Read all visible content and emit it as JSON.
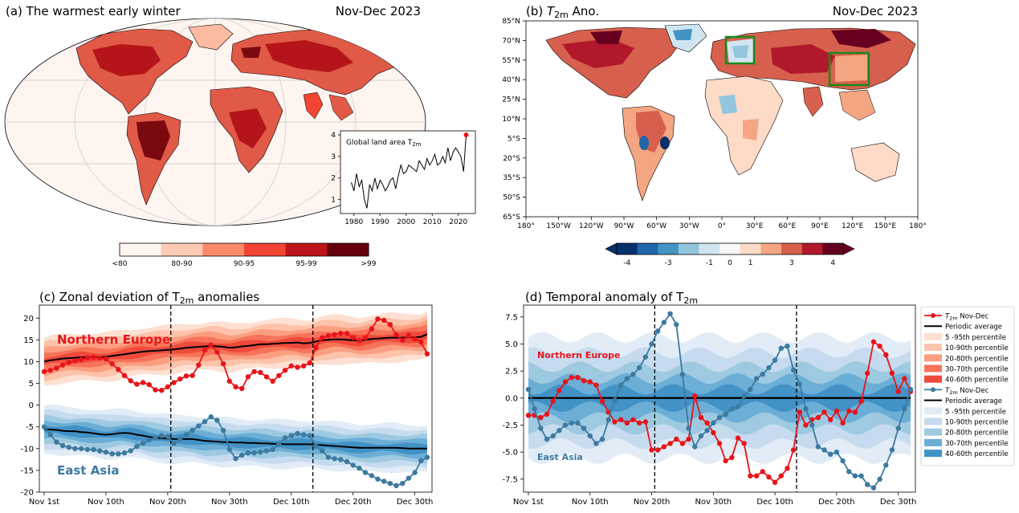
{
  "colors": {
    "red": "#e8141b",
    "blue": "#3d7aa0",
    "ref": "#000000",
    "green": "#1a8a1a",
    "ocean": "#fff5f0",
    "land_mid": "#e05a47"
  },
  "panel_a": {
    "title": "(a) The warmest early winter",
    "period": "Nov-Dec 2023",
    "colorbar_labels": [
      "<80",
      "80-90",
      "90-95",
      "95-99",
      ">99"
    ],
    "colorbar_colors": [
      "#fff5f0",
      "#fdcab5",
      "#fc8a6a",
      "#f14432",
      "#bc141a",
      "#67000d"
    ]
  },
  "panel_b": {
    "title": "(b) T2m Ano.",
    "title_prefix": "(b) ",
    "title_var": "T",
    "title_sub": "2m",
    "title_suffix": " Ano.",
    "period": "Nov-Dec 2023",
    "lat_labels": [
      "85°N",
      "70°N",
      "55°N",
      "40°N",
      "25°N",
      "10°N",
      "5°S",
      "20°S",
      "35°S",
      "50°S",
      "65°S"
    ],
    "lon_labels": [
      "180°",
      "150°W",
      "120°W",
      "90°W",
      "60°W",
      "30°W",
      "0°",
      "30°E",
      "60°E",
      "90°E",
      "120°E",
      "150°E",
      "180°"
    ],
    "colorbar_ticks": [
      "-4",
      "-3",
      "-1",
      "0",
      "1",
      "3",
      "4"
    ],
    "colorbar_colors": [
      "#08306b",
      "#2166ac",
      "#4393c3",
      "#92c5de",
      "#d1e5f0",
      "#f7f7f7",
      "#fddbc7",
      "#f4a582",
      "#d6604d",
      "#b2182b",
      "#67001f"
    ]
  },
  "inset": {
    "title_text": "Global land area T",
    "title_sub": "2m",
    "xlabels": [
      "1980",
      "1990",
      "2000",
      "2010",
      "2020"
    ],
    "ylabels": [
      "1",
      "2",
      "3",
      "4"
    ]
  },
  "panel_c": {
    "title_text": "(c) Zonal deviation of T",
    "title_sub": "2m",
    "title_suffix": " anomalies",
    "label_ne": "Northern Europe",
    "label_ea": "East Asia",
    "y_ticks": [
      "20",
      "15",
      "10",
      "5",
      "0",
      "-5",
      "-10",
      "-15",
      "-20"
    ],
    "x_labels": [
      "Nov 1st",
      "Nov 10th",
      "Nov 20th",
      "Nov 30th",
      "Dec 10th",
      "Dec 20th",
      "Dec 30th"
    ]
  },
  "panel_d": {
    "title_text": "(d) Temporal anomaly of T",
    "title_sub": "2m",
    "label_ne": "Northern Europe",
    "label_ea": "East Asia",
    "y_ticks": [
      "7.5",
      "5.0",
      "2.5",
      "0.0",
      "-2.5",
      "-5.0",
      "-7.5"
    ],
    "x_labels": [
      "Nov 1st",
      "Nov 10th",
      "Nov 20th",
      "Nov 30th",
      "Dec 10th",
      "Dec 20th",
      "Dec 30th"
    ]
  },
  "legend": {
    "line_label_prefix": "T",
    "line_label_sub": "2m",
    "line_label_suffix": " Nov-Dec",
    "items": [
      "Periodic average",
      "5  -95th percentile",
      "10-90th percentile",
      "20-80th percentile",
      "30-70th percentile",
      "40-60th percentile"
    ],
    "red_band_colors": [
      "#fde0d2",
      "#fcc3aa",
      "#fb9f80",
      "#f7735a",
      "#ef4a3b"
    ],
    "blue_band_colors": [
      "#e1ecf7",
      "#c6dbef",
      "#9ecae1",
      "#6baed6",
      "#4292c6"
    ]
  },
  "chart_data": [
    {
      "type": "line",
      "title": "Global land area T2m",
      "x": [
        1979,
        1980,
        1981,
        1982,
        1983,
        1984,
        1985,
        1986,
        1987,
        1988,
        1989,
        1990,
        1991,
        1992,
        1993,
        1994,
        1995,
        1996,
        1997,
        1998,
        1999,
        2000,
        2001,
        2002,
        2003,
        2004,
        2005,
        2006,
        2007,
        2008,
        2009,
        2010,
        2011,
        2012,
        2013,
        2014,
        2015,
        2016,
        2017,
        2018,
        2019,
        2020,
        2021,
        2022,
        2023
      ],
      "values": [
        1.8,
        1.4,
        2.2,
        1.6,
        1.9,
        1.0,
        0.6,
        1.7,
        1.4,
        2.0,
        1.5,
        1.9,
        1.7,
        1.4,
        1.6,
        1.9,
        2.0,
        1.5,
        2.1,
        2.6,
        2.2,
        2.3,
        2.6,
        2.5,
        2.4,
        2.3,
        2.8,
        2.6,
        2.4,
        2.9,
        2.6,
        2.8,
        3.1,
        2.6,
        2.7,
        3.0,
        2.7,
        3.4,
        2.8,
        3.2,
        3.4,
        3.2,
        3.0,
        2.3,
        4.0
      ],
      "xlim": [
        1977,
        2025
      ],
      "ylim": [
        0.5,
        4.0
      ]
    },
    {
      "type": "line",
      "title": "Zonal deviation of T2m anomalies",
      "x_labels": [
        "Nov 1st",
        "Nov 10th",
        "Nov 20th",
        "Nov 30th",
        "Dec 10th",
        "Dec 20th",
        "Dec 30th"
      ],
      "vlines": [
        20.5,
        43.5
      ],
      "ylim": [
        -20,
        23
      ],
      "series": [
        {
          "name": "Northern Europe T2m Nov-Dec",
          "values": [
            7.7,
            8.0,
            8.5,
            9.2,
            9.8,
            10.2,
            10.5,
            10.9,
            11.0,
            10.8,
            10.6,
            9.5,
            8.2,
            6.8,
            5.6,
            4.8,
            5.2,
            4.7,
            3.5,
            3.4,
            4.2,
            5.2,
            6.0,
            6.7,
            6.8,
            9.2,
            12.6,
            13.8,
            12.2,
            9.5,
            5.5,
            4.2,
            3.8,
            6.5,
            7.7,
            7.5,
            6.5,
            5.5,
            6.8,
            8.0,
            9.0,
            8.7,
            9.0,
            9.7,
            13.2,
            15.5,
            16.0,
            16.2,
            16.5,
            16.5,
            15.5,
            14.8,
            15.5,
            17.5,
            19.8,
            19.5,
            18.5,
            16.2,
            14.9,
            16.0,
            15.2,
            14.5,
            11.8
          ]
        },
        {
          "name": "Northern Europe periodic average",
          "values": [
            10.0,
            10.3,
            10.5,
            10.7,
            10.8,
            10.9,
            11.0,
            11.0,
            11.0,
            11.0,
            11.1,
            11.3,
            11.5,
            11.7,
            11.9,
            12.1,
            12.3,
            12.4,
            12.5,
            12.6,
            12.7,
            12.8,
            13.0,
            13.2,
            13.3,
            13.4,
            13.5,
            13.6,
            13.5,
            13.4,
            13.2,
            13.3,
            13.5,
            13.6,
            13.8,
            14.0,
            14.0,
            14.1,
            14.2,
            14.3,
            14.3,
            14.4,
            14.2,
            14.3,
            14.6,
            14.9,
            15.0,
            15.1,
            15.1,
            15.0,
            14.9,
            14.8,
            15.0,
            15.2,
            15.3,
            15.4,
            15.5,
            15.5,
            15.5,
            15.6,
            15.6,
            15.7,
            16.3
          ]
        },
        {
          "name": "East Asia T2m Nov-Dec",
          "values": [
            -5.0,
            -6.8,
            -8.5,
            -9.3,
            -9.7,
            -10.0,
            -10.0,
            -10.2,
            -10.2,
            -10.5,
            -10.8,
            -11.2,
            -11.2,
            -11.0,
            -10.5,
            -9.5,
            -8.8,
            -8.0,
            -7.5,
            -7.0,
            -7.2,
            -8.8,
            -7.8,
            -6.8,
            -5.8,
            -4.8,
            -3.8,
            -2.7,
            -3.5,
            -5.8,
            -10.2,
            -12.3,
            -11.5,
            -11.0,
            -11.0,
            -10.8,
            -10.5,
            -10.2,
            -9.0,
            -7.5,
            -7.0,
            -6.5,
            -6.8,
            -7.0,
            -9.5,
            -10.5,
            -12.0,
            -12.3,
            -12.5,
            -13.0,
            -13.8,
            -14.5,
            -15.5,
            -16.2,
            -17.0,
            -17.5,
            -18.0,
            -18.5,
            -18.0,
            -16.8,
            -15.5,
            -12.8,
            -12.0
          ]
        },
        {
          "name": "East Asia periodic average",
          "values": [
            -5.6,
            -5.6,
            -5.7,
            -5.9,
            -6.0,
            -6.0,
            -6.2,
            -6.3,
            -6.5,
            -6.7,
            -6.8,
            -6.7,
            -6.5,
            -6.4,
            -6.5,
            -6.8,
            -7.0,
            -7.3,
            -7.5,
            -7.6,
            -7.7,
            -7.8,
            -7.8,
            -7.8,
            -7.8,
            -8.0,
            -8.2,
            -8.3,
            -8.4,
            -8.5,
            -8.5,
            -8.6,
            -8.6,
            -8.7,
            -8.7,
            -8.8,
            -8.8,
            -8.9,
            -8.9,
            -9.0,
            -9.0,
            -9.0,
            -9.0,
            -9.0,
            -9.1,
            -9.2,
            -9.3,
            -9.4,
            -9.5,
            -9.6,
            -9.7,
            -9.8,
            -9.8,
            -9.8,
            -9.8,
            -9.8,
            -9.8,
            -9.8,
            -9.9,
            -10.0,
            -10.0,
            -10.0,
            -10.0
          ]
        }
      ]
    },
    {
      "type": "line",
      "title": "Temporal anomaly of T2m",
      "x_labels": [
        "Nov 1st",
        "Nov 10th",
        "Nov 20th",
        "Nov 30th",
        "Dec 10th",
        "Dec 20th",
        "Dec 30th"
      ],
      "vlines": [
        20.5,
        43.5
      ],
      "ylim": [
        -8.7,
        8.6
      ],
      "series": [
        {
          "name": "Northern Europe T2m Nov-Dec",
          "values": [
            -1.6,
            -1.6,
            -1.8,
            -1.5,
            -0.3,
            0.7,
            1.5,
            1.9,
            1.9,
            1.6,
            1.5,
            1.2,
            -0.3,
            -1.3,
            -2.2,
            -2.0,
            -2.3,
            -2.0,
            -2.3,
            -2.2,
            -4.8,
            -4.8,
            -4.5,
            -4.2,
            -3.8,
            -4.2,
            -3.8,
            0.2,
            -1.8,
            -2.3,
            -3.2,
            -4.2,
            -5.8,
            -5.5,
            -3.7,
            -4.2,
            -7.2,
            -7.2,
            -6.8,
            -7.3,
            -7.8,
            -7.2,
            -6.5,
            -4.8,
            -1.3,
            -2.5,
            -2.0,
            -1.8,
            -1.3,
            -2.0,
            -1.2,
            -2.3,
            -1.2,
            -1.3,
            -0.3,
            2.3,
            5.2,
            4.8,
            4.0,
            2.3,
            0.6,
            1.8,
            0.6
          ]
        },
        {
          "name": "Northern Europe periodic average",
          "values": [
            0,
            0,
            0,
            0,
            0,
            0,
            0,
            0,
            0,
            0,
            0,
            0,
            0,
            0,
            0,
            0,
            0,
            0,
            0,
            0,
            0,
            0,
            0,
            0,
            0,
            0,
            0,
            0,
            0,
            0,
            0,
            0,
            0,
            0,
            0,
            0,
            0,
            0,
            0,
            0,
            0,
            0,
            0,
            0,
            0,
            0,
            0,
            0,
            0,
            0,
            0,
            0,
            0,
            0,
            0,
            0,
            0,
            0,
            0,
            0,
            0,
            0,
            0
          ]
        },
        {
          "name": "East Asia T2m Nov-Dec",
          "values": [
            0.8,
            -1.0,
            -2.8,
            -3.8,
            -3.5,
            -3.0,
            -2.5,
            -2.3,
            -2.3,
            -2.8,
            -3.5,
            -4.2,
            -3.8,
            -2.0,
            -0.2,
            1.2,
            1.8,
            2.2,
            2.8,
            3.8,
            5.0,
            6.2,
            7.0,
            7.8,
            6.8,
            2.2,
            -2.8,
            -4.5,
            -3.5,
            -3.0,
            -2.3,
            -1.8,
            -1.5,
            -1.0,
            -0.8,
            0.2,
            0.8,
            1.8,
            2.2,
            2.8,
            3.5,
            4.6,
            4.8,
            2.6,
            1.3,
            -1.0,
            -2.5,
            -4.5,
            -4.8,
            -5.2,
            -5.0,
            -5.8,
            -6.8,
            -7.2,
            -7.2,
            -8.0,
            -8.3,
            -7.5,
            -6.2,
            -4.8,
            -2.8,
            -1.0,
            0.8
          ]
        },
        {
          "name": "East Asia periodic average",
          "values": [
            0,
            0,
            0,
            0,
            0,
            0,
            0,
            0,
            0,
            0,
            0,
            0,
            0,
            0,
            0,
            0,
            0,
            0,
            0,
            0,
            0,
            0,
            0,
            0,
            0,
            0,
            0,
            0,
            0,
            0,
            0,
            0,
            0,
            0,
            0,
            0,
            0,
            0,
            0,
            0,
            0,
            0,
            0,
            0,
            0,
            0,
            0,
            0,
            0,
            0,
            0,
            0,
            0,
            0,
            0,
            0,
            0,
            0,
            0,
            0,
            0,
            0,
            0
          ]
        }
      ]
    }
  ]
}
